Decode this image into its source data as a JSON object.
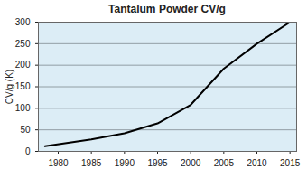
{
  "chart_data": {
    "type": "line",
    "title": "Tantalum Powder CV/g",
    "y_label": "CV/g (K)",
    "x": [
      1978,
      1985,
      1990,
      1995,
      2000,
      2005,
      2010,
      2015
    ],
    "values": [
      12,
      28,
      42,
      65,
      108,
      192,
      250,
      300
    ],
    "color": "#000000",
    "xlim": [
      1977,
      2016
    ],
    "xticks": [
      1980,
      1985,
      1990,
      1995,
      2000,
      2005,
      2010,
      2015
    ],
    "ylim": [
      0,
      300
    ],
    "yticks": [
      0,
      50,
      100,
      150,
      200,
      250,
      300
    ],
    "grid": true
  }
}
